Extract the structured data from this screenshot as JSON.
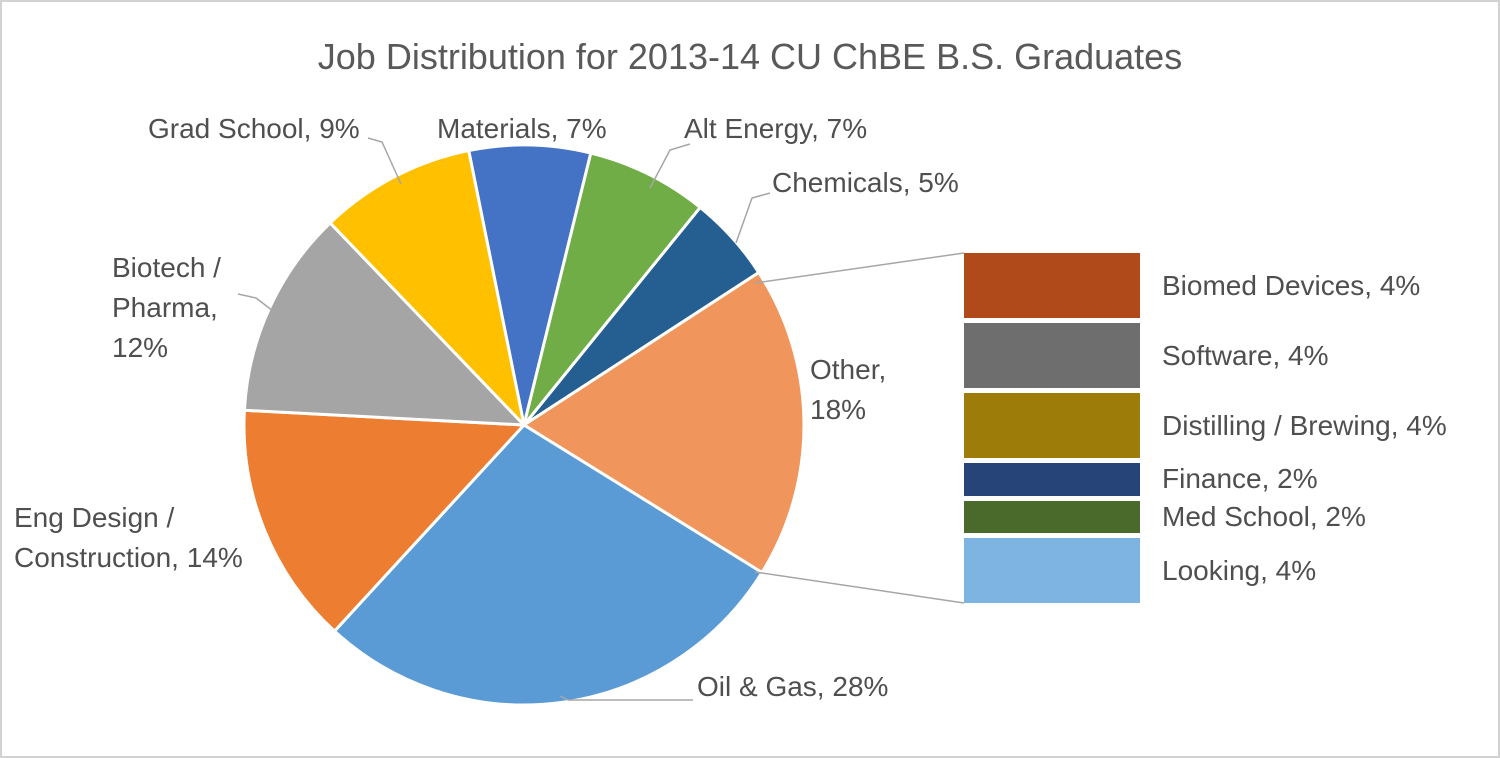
{
  "chart_data": {
    "type": "pie",
    "variant": "pie-with-breakout-bar",
    "title": "Job Distribution for 2013-14 CU ChBE B.S. Graduates",
    "legend_position": "none",
    "pie": {
      "start_angle_deg": -11.4,
      "direction": "clockwise",
      "slices": [
        {
          "label": "Materials",
          "value": 7,
          "color": "#4472C4",
          "lines": [
            "Materials, 7%"
          ]
        },
        {
          "label": "Alt Energy",
          "value": 7,
          "color": "#70AD47",
          "lines": [
            "Alt Energy, 7%"
          ]
        },
        {
          "label": "Chemicals",
          "value": 5,
          "color": "#255E91",
          "lines": [
            "Chemicals, 5%"
          ]
        },
        {
          "label": "Other",
          "value": 18,
          "color": "#F0965D",
          "lines": [
            "Other,",
            "18%"
          ]
        },
        {
          "label": "Oil & Gas",
          "value": 28,
          "color": "#5B9BD5",
          "lines": [
            "Oil & Gas, 28%"
          ]
        },
        {
          "label": "Eng Design / Construction",
          "value": 14,
          "color": "#ED7D31",
          "lines": [
            "Eng Design /",
            "Construction, 14%"
          ]
        },
        {
          "label": "Biotech / Pharma",
          "value": 12,
          "color": "#A5A5A5",
          "lines": [
            "Biotech /",
            "Pharma,",
            "12%"
          ]
        },
        {
          "label": "Grad School",
          "value": 9,
          "color": "#FFC000",
          "lines": [
            "Grad School, 9%"
          ]
        }
      ]
    },
    "breakout": {
      "parent_slice": "Other",
      "slices": [
        {
          "label": "Biomed Devices",
          "value": 4,
          "color": "#B04A1B",
          "display": "Biomed Devices, 4%"
        },
        {
          "label": "Software",
          "value": 4,
          "color": "#6E6E6E",
          "display": "Software, 4%"
        },
        {
          "label": "Distilling / Brewing",
          "value": 4,
          "color": "#9E7C0A",
          "display": "Distilling / Brewing, 4%"
        },
        {
          "label": "Finance",
          "value": 2,
          "color": "#264478",
          "display": "Finance, 2%"
        },
        {
          "label": "Med School",
          "value": 2,
          "color": "#4A6A2C",
          "display": "Med School, 2%"
        },
        {
          "label": "Looking",
          "value": 4,
          "color": "#7EB4E2",
          "display": "Looking, 4%"
        }
      ]
    }
  }
}
